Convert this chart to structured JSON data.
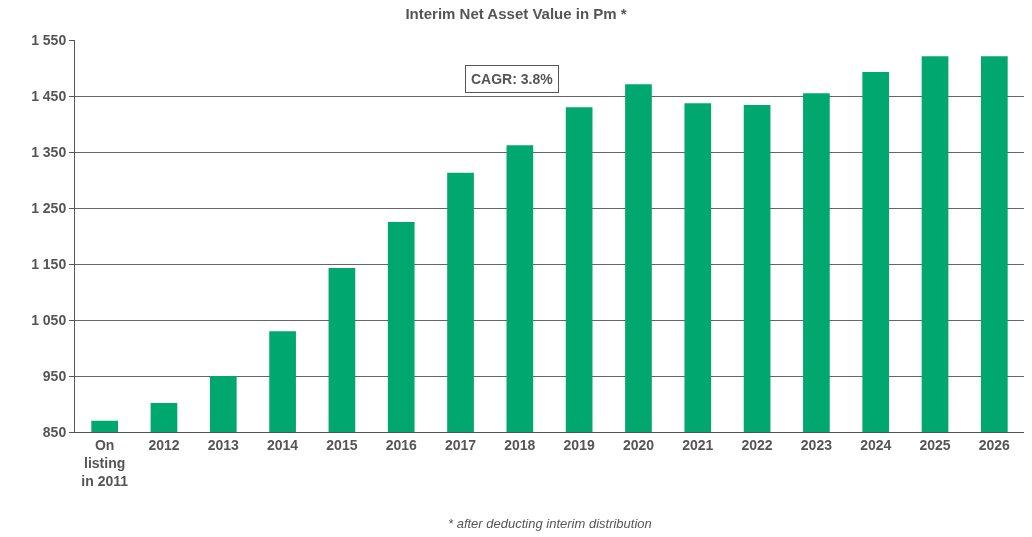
{
  "chart_data": {
    "type": "bar",
    "title": "Interim Net Asset Value in Pm *",
    "categories": [
      "On\nlisting\nin 2011",
      "2012",
      "2013",
      "2014",
      "2015",
      "2016",
      "2017",
      "2018",
      "2019",
      "2020",
      "2021",
      "2022",
      "2023",
      "2024",
      "2025",
      "2026"
    ],
    "values": [
      870,
      902,
      950,
      1030,
      1143,
      1225,
      1313,
      1362,
      1430,
      1471,
      1437,
      1434,
      1455,
      1493,
      1521,
      1521
    ],
    "color": "#00a870",
    "ylim": [
      850,
      1550
    ],
    "yticks": [
      {
        "value": 850,
        "label": "850"
      },
      {
        "value": 950,
        "label": "950"
      },
      {
        "value": 1050,
        "label": "1 050"
      },
      {
        "value": 1150,
        "label": "1 150"
      },
      {
        "value": 1250,
        "label": "1 250"
      },
      {
        "value": 1350,
        "label": "1 350"
      },
      {
        "value": 1450,
        "label": "1 450"
      },
      {
        "value": 1550,
        "label": "1 550"
      }
    ],
    "grid": "y",
    "annotations": [
      "CAGR: 3.8%",
      "* after deducting interim distribution"
    ]
  }
}
